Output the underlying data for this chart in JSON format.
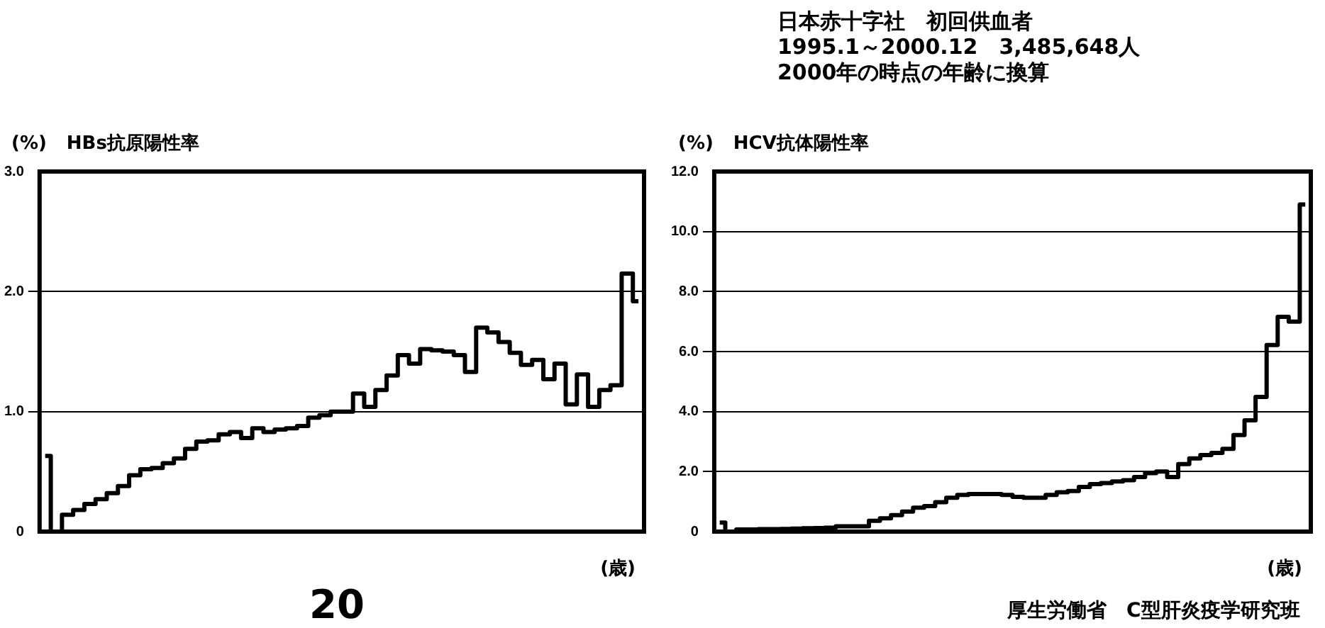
{
  "chart_data": [
    {
      "type": "step",
      "title": "HBs抗原陽性率",
      "ylabel": "(%)",
      "xlabel": "(歳)",
      "categories": [
        null,
        null,
        null,
        null,
        null,
        null,
        null,
        null,
        null,
        null,
        null,
        null,
        null,
        null,
        null,
        null,
        null,
        null,
        null,
        null,
        null,
        null,
        null,
        null,
        null,
        null,
        null,
        null,
        null,
        null,
        null,
        null,
        null,
        null,
        null,
        null,
        null,
        null,
        null,
        null,
        null,
        null,
        null,
        null,
        null,
        null,
        null,
        null,
        null,
        null,
        null,
        null,
        null,
        null
      ],
      "series": [
        {
          "color": "#000000",
          "values": [
            0.63,
            0,
            0.14,
            0.18,
            0.23,
            0.27,
            0.32,
            0.38,
            0.47,
            0.52,
            0.53,
            0.57,
            0.61,
            0.69,
            0.75,
            0.76,
            0.81,
            0.83,
            0.78,
            0.86,
            0.83,
            0.85,
            0.86,
            0.88,
            0.95,
            0.97,
            1.0,
            1.0,
            1.15,
            1.04,
            1.18,
            1.3,
            1.47,
            1.4,
            1.52,
            1.51,
            1.5,
            1.47,
            1.33,
            1.7,
            1.66,
            1.58,
            1.49,
            1.39,
            1.43,
            1.27,
            1.4,
            1.06,
            1.31,
            1.04,
            1.18,
            1.22,
            2.15,
            1.92
          ]
        }
      ],
      "ylim": [
        0,
        3
      ],
      "yticks": [
        0,
        {
          "value": 1,
          "label": "1.0"
        },
        {
          "value": 2,
          "label": "2.0"
        },
        {
          "value": 3,
          "label": "3.0"
        }
      ],
      "grid": "y",
      "tick_labels": "y",
      "annotations": [
        "20"
      ]
    },
    {
      "type": "step",
      "title": "HCV抗体陽性率",
      "ylabel": "(%)",
      "xlabel": "(歳)",
      "categories": [
        null,
        null,
        null,
        null,
        null,
        null,
        null,
        null,
        null,
        null,
        null,
        null,
        null,
        null,
        null,
        null,
        null,
        null,
        null,
        null,
        null,
        null,
        null,
        null,
        null,
        null,
        null,
        null,
        null,
        null,
        null,
        null,
        null,
        null,
        null,
        null,
        null,
        null,
        null,
        null,
        null,
        null,
        null,
        null,
        null,
        null,
        null,
        null,
        null,
        null,
        null,
        null,
        null,
        null
      ],
      "series": [
        {
          "color": "#000000",
          "values": [
            0.3,
            0,
            0.07,
            0.07,
            0.08,
            0.08,
            0.09,
            0.1,
            0.11,
            0.12,
            0.13,
            0.18,
            0.18,
            0.18,
            0.36,
            0.44,
            0.55,
            0.67,
            0.8,
            0.85,
            0.98,
            1.13,
            1.22,
            1.25,
            1.25,
            1.25,
            1.22,
            1.16,
            1.13,
            1.13,
            1.22,
            1.31,
            1.35,
            1.49,
            1.58,
            1.62,
            1.67,
            1.71,
            1.82,
            1.95,
            2.0,
            1.82,
            2.25,
            2.44,
            2.55,
            2.62,
            2.76,
            3.22,
            3.71,
            4.49,
            6.22,
            7.16,
            7.0,
            10.9
          ]
        }
      ],
      "ylim": [
        0,
        12
      ],
      "yticks": [
        0,
        {
          "value": 2,
          "label": "2.0"
        },
        {
          "value": 4,
          "label": "4.0"
        },
        {
          "value": 6,
          "label": "6.0"
        },
        {
          "value": 8,
          "label": "8.0"
        },
        {
          "value": 10,
          "label": "10.0"
        },
        {
          "value": 12,
          "label": "12.0"
        }
      ],
      "grid": "y",
      "tick_labels": "y",
      "annotations": [
        "日本赤十字社　初回供血者",
        "1995.1～2000.12　3,485,648人",
        "2000年の時点の年齢に換算",
        "厚生労働省　C型肝炎疫学研究班"
      ]
    }
  ]
}
